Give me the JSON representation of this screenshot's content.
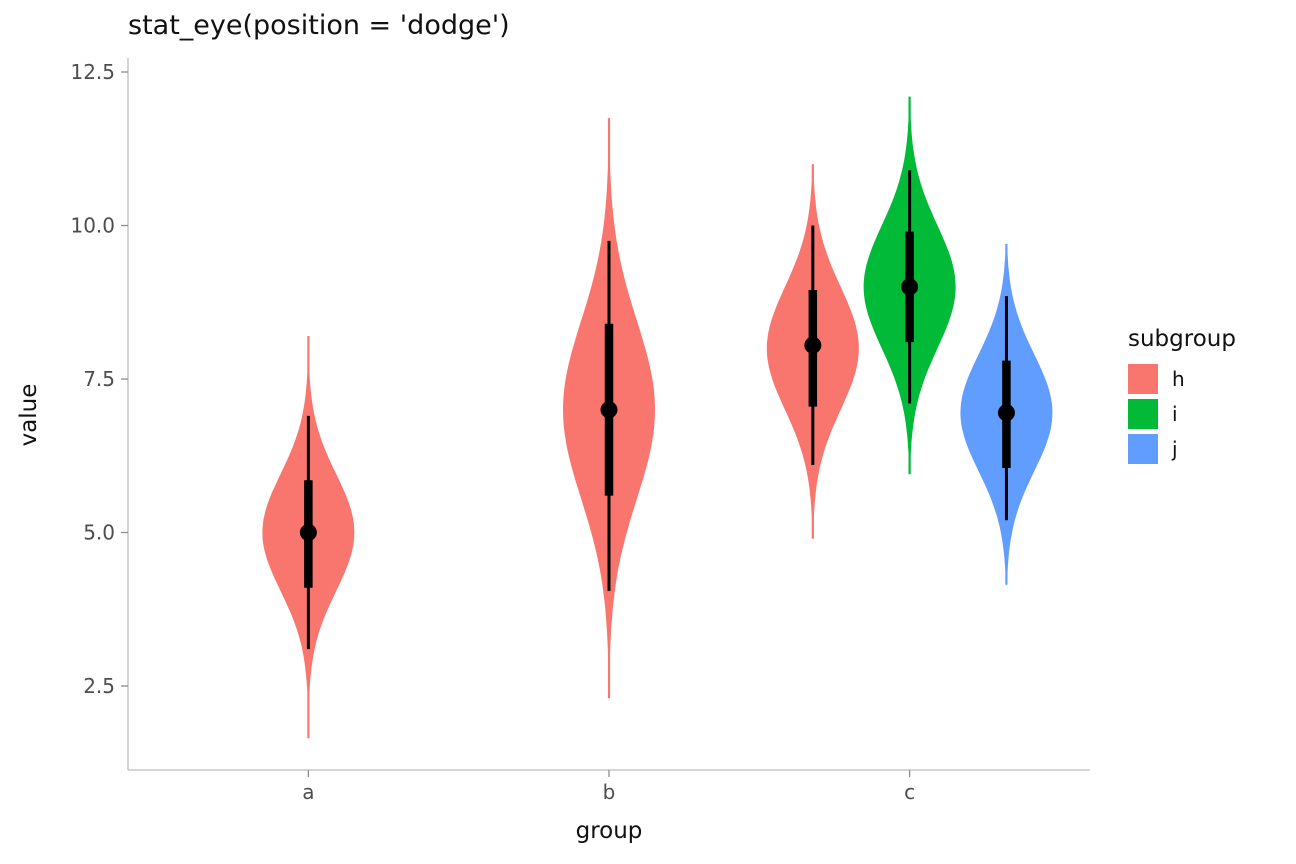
{
  "chart_data": {
    "type": "violin-eye",
    "title": "stat_eye(position = 'dodge')",
    "xlabel": "group",
    "ylabel": "value",
    "categories": [
      "a",
      "b",
      "c"
    ],
    "yticks": [
      "2.5",
      "5.0",
      "7.5",
      "10.0",
      "12.5"
    ],
    "ylim": [
      1.1,
      12.8
    ],
    "grid": false,
    "legend_position": "right",
    "style": {
      "axis_line_color": "#BEBEBE",
      "tick_color": "#8C8C8C",
      "tick_label_color": "#4D4D4D",
      "interval_color": "#000000",
      "point_color": "#000000"
    },
    "legend": {
      "title": "subgroup",
      "items": [
        {
          "label": "h",
          "color": "#F8766D"
        },
        {
          "label": "i",
          "color": "#00BA38"
        },
        {
          "label": "j",
          "color": "#619CFF"
        }
      ]
    },
    "violins": [
      {
        "group": "a",
        "subgroup": "h",
        "color": "#F8766D",
        "mean": 5.0,
        "sd": 0.95,
        "min": 1.65,
        "max": 8.2,
        "point": 5.0,
        "ci95": [
          3.1,
          6.9
        ],
        "ci66": [
          4.1,
          5.85
        ]
      },
      {
        "group": "b",
        "subgroup": "h",
        "color": "#F8766D",
        "mean": 7.0,
        "sd": 1.45,
        "min": 2.3,
        "max": 11.75,
        "point": 7.0,
        "ci95": [
          4.05,
          9.75
        ],
        "ci66": [
          5.6,
          8.4
        ]
      },
      {
        "group": "c",
        "subgroup": "h",
        "color": "#F8766D",
        "mean": 8.0,
        "sd": 1.0,
        "min": 4.9,
        "max": 11.0,
        "point": 8.05,
        "ci95": [
          6.1,
          10.0
        ],
        "ci66": [
          7.05,
          8.95
        ]
      },
      {
        "group": "c",
        "subgroup": "i",
        "color": "#00BA38",
        "mean": 9.0,
        "sd": 1.0,
        "min": 5.95,
        "max": 12.1,
        "point": 9.0,
        "ci95": [
          7.1,
          10.9
        ],
        "ci66": [
          8.1,
          9.9
        ]
      },
      {
        "group": "c",
        "subgroup": "j",
        "color": "#619CFF",
        "mean": 6.95,
        "sd": 0.95,
        "min": 4.15,
        "max": 9.7,
        "point": 6.95,
        "ci95": [
          5.2,
          8.85
        ],
        "ci66": [
          6.05,
          7.8
        ]
      }
    ]
  }
}
